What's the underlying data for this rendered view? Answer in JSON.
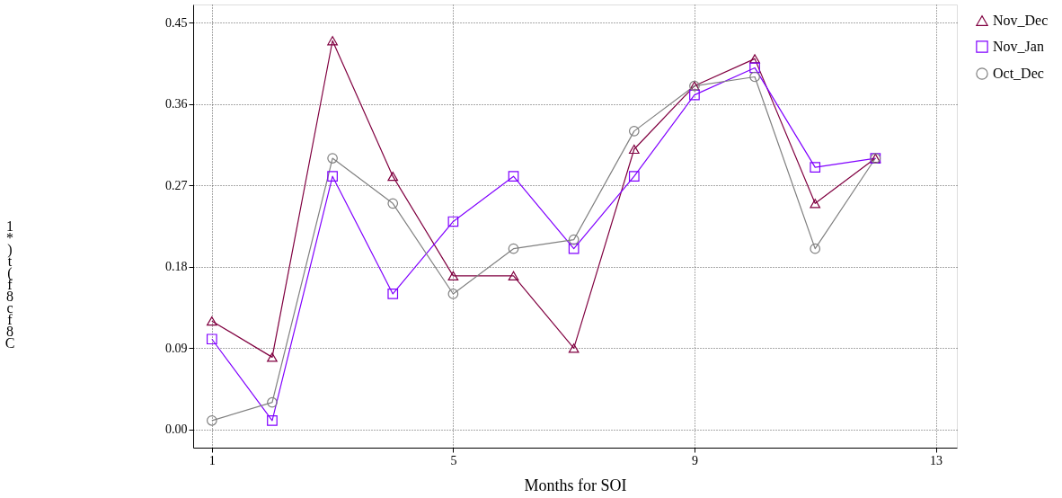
{
  "chart_data": {
    "type": "line",
    "xlabel": "Months for SOI",
    "ylabel": "1*)t(f8c f8C",
    "x": [
      1,
      2,
      3,
      4,
      5,
      6,
      7,
      8,
      9,
      10,
      11,
      12
    ],
    "series": [
      {
        "name": "Nov_Dec",
        "color": "#800040",
        "marker": "triangle",
        "values": [
          0.12,
          0.08,
          0.43,
          0.28,
          0.17,
          0.17,
          0.09,
          0.31,
          0.38,
          0.41,
          0.25,
          0.3
        ]
      },
      {
        "name": "Nov_Jan",
        "color": "#8000ff",
        "marker": "square",
        "values": [
          0.1,
          0.01,
          0.28,
          0.15,
          0.23,
          0.28,
          0.2,
          0.28,
          0.37,
          0.4,
          0.29,
          0.3
        ]
      },
      {
        "name": "Oct_Dec",
        "color": "#808080",
        "marker": "circle",
        "values": [
          0.01,
          0.03,
          0.3,
          0.25,
          0.15,
          0.2,
          0.21,
          0.33,
          0.38,
          0.39,
          0.2,
          0.3
        ]
      }
    ],
    "xlim": [
      0.69,
      13.35
    ],
    "xticks": [
      1,
      5,
      9,
      13
    ],
    "ylim": [
      -0.02,
      0.47
    ],
    "yticks": [
      {
        "value": 0,
        "label": "0.00"
      },
      0.09,
      0.18,
      0.27,
      0.36,
      0.45
    ],
    "grid": true,
    "legend": "right",
    "line_style": "solid"
  }
}
